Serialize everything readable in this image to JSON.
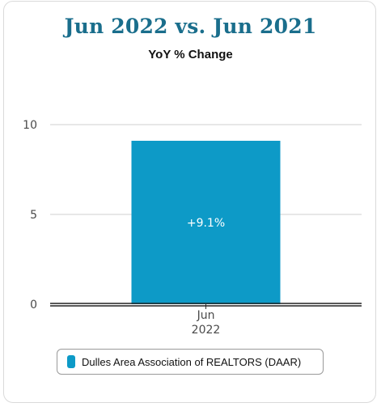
{
  "title": "Jun 2022 vs. Jun 2021",
  "subtitle": "YoY % Change",
  "colors": {
    "title": "#1a6e8c",
    "bar": "#0d9ac7",
    "grid": "#cfcfcf"
  },
  "legend": {
    "label": "Dulles Area Association of REALTORS (DAAR)"
  },
  "chart_data": {
    "type": "bar",
    "title": "Jun 2022 vs. Jun 2021",
    "subtitle": "YoY % Change",
    "categories": [
      [
        "Jun",
        "2022"
      ]
    ],
    "series": [
      {
        "name": "Dulles Area Association of REALTORS (DAAR)",
        "values": [
          9.1
        ],
        "data_labels": [
          "+9.1%"
        ]
      }
    ],
    "yticks": [
      0,
      5,
      10
    ],
    "ylim": [
      0,
      10
    ],
    "grid": true,
    "legend_position": "bottom"
  }
}
